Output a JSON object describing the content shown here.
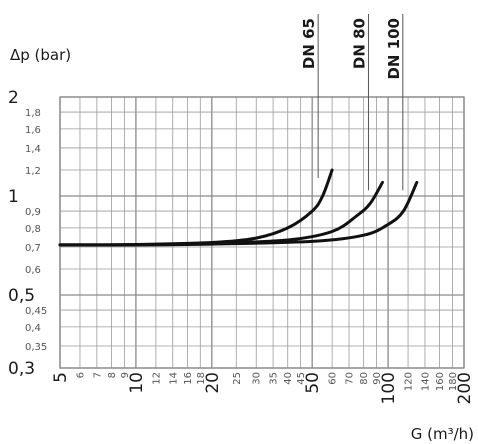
{
  "chart_data": {
    "type": "line",
    "xscale": "log",
    "yscale": "log",
    "xlim": [
      5,
      200
    ],
    "ylim": [
      0.3,
      2
    ],
    "grid": true,
    "xlabel": "G (m³/h)",
    "ylabel": "Δp (bar)",
    "x_ticks": [
      {
        "value": 5,
        "label": "5",
        "major": true
      },
      {
        "value": 6,
        "label": "6",
        "major": false
      },
      {
        "value": 7,
        "label": "7",
        "major": false
      },
      {
        "value": 8,
        "label": "8",
        "major": false
      },
      {
        "value": 9,
        "label": "9",
        "major": false
      },
      {
        "value": 10,
        "label": "10",
        "major": true
      },
      {
        "value": 12,
        "label": "12",
        "major": false
      },
      {
        "value": 14,
        "label": "14",
        "major": false
      },
      {
        "value": 16,
        "label": "16",
        "major": false
      },
      {
        "value": 18,
        "label": "18",
        "major": false
      },
      {
        "value": 20,
        "label": "20",
        "major": true
      },
      {
        "value": 25,
        "label": "25",
        "major": false
      },
      {
        "value": 30,
        "label": "30",
        "major": false
      },
      {
        "value": 35,
        "label": "35",
        "major": false
      },
      {
        "value": 40,
        "label": "40",
        "major": false
      },
      {
        "value": 45,
        "label": "45",
        "major": false
      },
      {
        "value": 50,
        "label": "50",
        "major": true
      },
      {
        "value": 60,
        "label": "60",
        "major": false
      },
      {
        "value": 70,
        "label": "70",
        "major": false
      },
      {
        "value": 80,
        "label": "80",
        "major": false
      },
      {
        "value": 90,
        "label": "90",
        "major": false
      },
      {
        "value": 100,
        "label": "100",
        "major": true
      },
      {
        "value": 120,
        "label": "120",
        "major": false
      },
      {
        "value": 140,
        "label": "140",
        "major": false
      },
      {
        "value": 160,
        "label": "160",
        "major": false
      },
      {
        "value": 180,
        "label": "180",
        "major": false
      },
      {
        "value": 200,
        "label": "200",
        "major": true
      }
    ],
    "y_ticks": [
      {
        "value": 0.3,
        "label": "0,3",
        "major": true
      },
      {
        "value": 0.35,
        "label": "0,35",
        "major": false
      },
      {
        "value": 0.4,
        "label": "0,4",
        "major": false
      },
      {
        "value": 0.45,
        "label": "0,45",
        "major": false
      },
      {
        "value": 0.5,
        "label": "0,5",
        "major": true
      },
      {
        "value": 0.6,
        "label": "0,6",
        "major": false
      },
      {
        "value": 0.7,
        "label": "0,7",
        "major": false
      },
      {
        "value": 0.8,
        "label": "0,8",
        "major": false
      },
      {
        "value": 0.9,
        "label": "0,9",
        "major": false
      },
      {
        "value": 1,
        "label": "1",
        "major": true
      },
      {
        "value": 1.2,
        "label": "1,2",
        "major": false
      },
      {
        "value": 1.4,
        "label": "1,4",
        "major": false
      },
      {
        "value": 1.6,
        "label": "1,6",
        "major": false
      },
      {
        "value": 1.8,
        "label": "1,8",
        "major": false
      },
      {
        "value": 2,
        "label": "2",
        "major": true
      }
    ],
    "series": [
      {
        "name": "DN 65",
        "x": [
          5,
          10,
          20,
          30,
          40,
          50,
          55,
          60
        ],
        "y": [
          0.71,
          0.712,
          0.722,
          0.745,
          0.8,
          0.9,
          1.0,
          1.2
        ]
      },
      {
        "name": "DN 80",
        "x": [
          5,
          10,
          20,
          40,
          60,
          75,
          85,
          95
        ],
        "y": [
          0.71,
          0.711,
          0.718,
          0.735,
          0.78,
          0.87,
          0.95,
          1.1
        ]
      },
      {
        "name": "DN 100",
        "x": [
          5,
          10,
          20,
          50,
          80,
          100,
          115,
          130
        ],
        "y": [
          0.71,
          0.71,
          0.714,
          0.728,
          0.76,
          0.82,
          0.9,
          1.1
        ]
      }
    ]
  }
}
